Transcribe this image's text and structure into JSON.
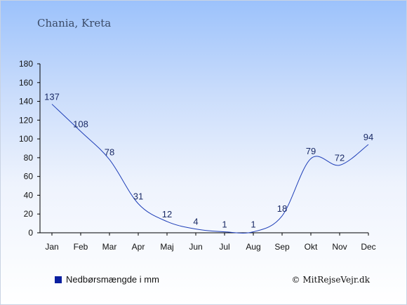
{
  "chart_data": {
    "type": "line",
    "title": "Chania, Kreta",
    "categories": [
      "Jan",
      "Feb",
      "Mar",
      "Apr",
      "Maj",
      "Jun",
      "Jul",
      "Aug",
      "Sep",
      "Okt",
      "Nov",
      "Dec"
    ],
    "series": [
      {
        "name": "Nedbørsmængde i mm",
        "values": [
          137,
          108,
          78,
          31,
          12,
          4,
          1,
          1,
          18,
          79,
          72,
          94
        ]
      }
    ],
    "ylim": [
      0,
      180
    ],
    "yticks": [
      0,
      20,
      40,
      60,
      80,
      100,
      120,
      140,
      160,
      180
    ],
    "grid": false,
    "legend": "bottom-left",
    "colors": {
      "line": "#1f3fb8",
      "legend_marker": "#0a1fa0",
      "label": "#1a2a66"
    }
  },
  "credit": "© MitRejseVejr.dk"
}
